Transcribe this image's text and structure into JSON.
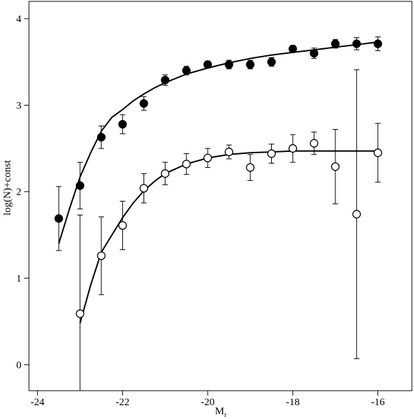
{
  "chart_data": {
    "type": "scatter",
    "title": "",
    "xlabel": "M",
    "xlabel_subscript": "r",
    "ylabel": "log(N)+const",
    "xlim": [
      -24.2,
      -15.2
    ],
    "ylim": [
      -0.3,
      4.2
    ],
    "xticks": [
      -24,
      -22,
      -20,
      -18,
      -16
    ],
    "xtick_labels": [
      "-24",
      "-22",
      "-20",
      "-18",
      "-16"
    ],
    "yticks": [
      0,
      1,
      2,
      3,
      4
    ],
    "ytick_labels": [
      "0",
      "1",
      "2",
      "3",
      "4"
    ],
    "grid": false,
    "legend": "none",
    "colors": {
      "marker": "#000000",
      "line": "#000000",
      "errorbar": "#000000"
    },
    "series": [
      {
        "marker": "filled-circle",
        "points": [
          {
            "x": -23.5,
            "y": 1.69,
            "err_low": 0.37,
            "err_high": 0.37
          },
          {
            "x": -23.0,
            "y": 2.07,
            "err_low": 0.27,
            "err_high": 0.27
          },
          {
            "x": -22.5,
            "y": 2.63,
            "err_low": 0.13,
            "err_high": 0.13
          },
          {
            "x": -22.0,
            "y": 2.78,
            "err_low": 0.11,
            "err_high": 0.11
          },
          {
            "x": -21.5,
            "y": 3.02,
            "err_low": 0.08,
            "err_high": 0.08
          },
          {
            "x": -21.0,
            "y": 3.29,
            "err_low": 0.06,
            "err_high": 0.06
          },
          {
            "x": -20.5,
            "y": 3.4,
            "err_low": 0.05,
            "err_high": 0.05
          },
          {
            "x": -20.0,
            "y": 3.47,
            "err_low": 0.04,
            "err_high": 0.04
          },
          {
            "x": -19.5,
            "y": 3.47,
            "err_low": 0.05,
            "err_high": 0.05
          },
          {
            "x": -19.0,
            "y": 3.47,
            "err_low": 0.05,
            "err_high": 0.05
          },
          {
            "x": -18.5,
            "y": 3.5,
            "err_low": 0.05,
            "err_high": 0.05
          },
          {
            "x": -18.0,
            "y": 3.65,
            "err_low": 0.04,
            "err_high": 0.04
          },
          {
            "x": -17.5,
            "y": 3.6,
            "err_low": 0.06,
            "err_high": 0.06
          },
          {
            "x": -17.0,
            "y": 3.71,
            "err_low": 0.05,
            "err_high": 0.05
          },
          {
            "x": -16.5,
            "y": 3.71,
            "err_low": 0.07,
            "err_high": 0.07
          },
          {
            "x": -16.0,
            "y": 3.71,
            "err_low": 0.08,
            "err_high": 0.08
          }
        ],
        "fit": [
          [
            -23.5,
            1.4
          ],
          [
            -23.25,
            1.8
          ],
          [
            -23.0,
            2.17
          ],
          [
            -22.75,
            2.45
          ],
          [
            -22.5,
            2.7
          ],
          [
            -22.25,
            2.86
          ],
          [
            -22.0,
            2.95
          ],
          [
            -21.75,
            3.05
          ],
          [
            -21.5,
            3.13
          ],
          [
            -21.25,
            3.2
          ],
          [
            -21.0,
            3.26
          ],
          [
            -20.5,
            3.36
          ],
          [
            -20.0,
            3.43
          ],
          [
            -19.5,
            3.49
          ],
          [
            -19.0,
            3.54
          ],
          [
            -18.5,
            3.58
          ],
          [
            -18.0,
            3.61
          ],
          [
            -17.5,
            3.64
          ],
          [
            -17.0,
            3.67
          ],
          [
            -16.5,
            3.7
          ],
          [
            -16.0,
            3.73
          ]
        ]
      },
      {
        "marker": "open-circle",
        "points": [
          {
            "x": -23.0,
            "y": 0.59,
            "err_low": 0.89,
            "err_high": 1.14
          },
          {
            "x": -22.5,
            "y": 1.26,
            "err_low": 0.45,
            "err_high": 0.45
          },
          {
            "x": -22.0,
            "y": 1.61,
            "err_low": 0.28,
            "err_high": 0.28
          },
          {
            "x": -21.5,
            "y": 2.04,
            "err_low": 0.17,
            "err_high": 0.17
          },
          {
            "x": -21.0,
            "y": 2.21,
            "err_low": 0.13,
            "err_high": 0.13
          },
          {
            "x": -20.5,
            "y": 2.32,
            "err_low": 0.12,
            "err_high": 0.12
          },
          {
            "x": -20.0,
            "y": 2.39,
            "err_low": 0.11,
            "err_high": 0.11
          },
          {
            "x": -19.5,
            "y": 2.46,
            "err_low": 0.08,
            "err_high": 0.08
          },
          {
            "x": -19.0,
            "y": 2.28,
            "err_low": 0.15,
            "err_high": 0.15
          },
          {
            "x": -18.5,
            "y": 2.44,
            "err_low": 0.11,
            "err_high": 0.11
          },
          {
            "x": -18.0,
            "y": 2.5,
            "err_low": 0.16,
            "err_high": 0.16
          },
          {
            "x": -17.5,
            "y": 2.56,
            "err_low": 0.13,
            "err_high": 0.13
          },
          {
            "x": -17.0,
            "y": 2.29,
            "err_low": 0.43,
            "err_high": 0.43
          },
          {
            "x": -16.5,
            "y": 1.74,
            "err_low": 1.67,
            "err_high": 1.67
          },
          {
            "x": -16.0,
            "y": 2.45,
            "err_low": 0.34,
            "err_high": 0.34
          }
        ],
        "fit": [
          [
            -23.0,
            0.48
          ],
          [
            -22.75,
            0.92
          ],
          [
            -22.5,
            1.3
          ],
          [
            -22.25,
            1.5
          ],
          [
            -22.0,
            1.7
          ],
          [
            -21.75,
            1.87
          ],
          [
            -21.5,
            2.01
          ],
          [
            -21.25,
            2.12
          ],
          [
            -21.0,
            2.21
          ],
          [
            -20.5,
            2.32
          ],
          [
            -20.0,
            2.39
          ],
          [
            -19.5,
            2.43
          ],
          [
            -19.0,
            2.45
          ],
          [
            -18.5,
            2.46
          ],
          [
            -18.0,
            2.47
          ],
          [
            -17.5,
            2.47
          ],
          [
            -17.0,
            2.47
          ],
          [
            -16.5,
            2.47
          ],
          [
            -16.0,
            2.47
          ]
        ]
      }
    ]
  }
}
